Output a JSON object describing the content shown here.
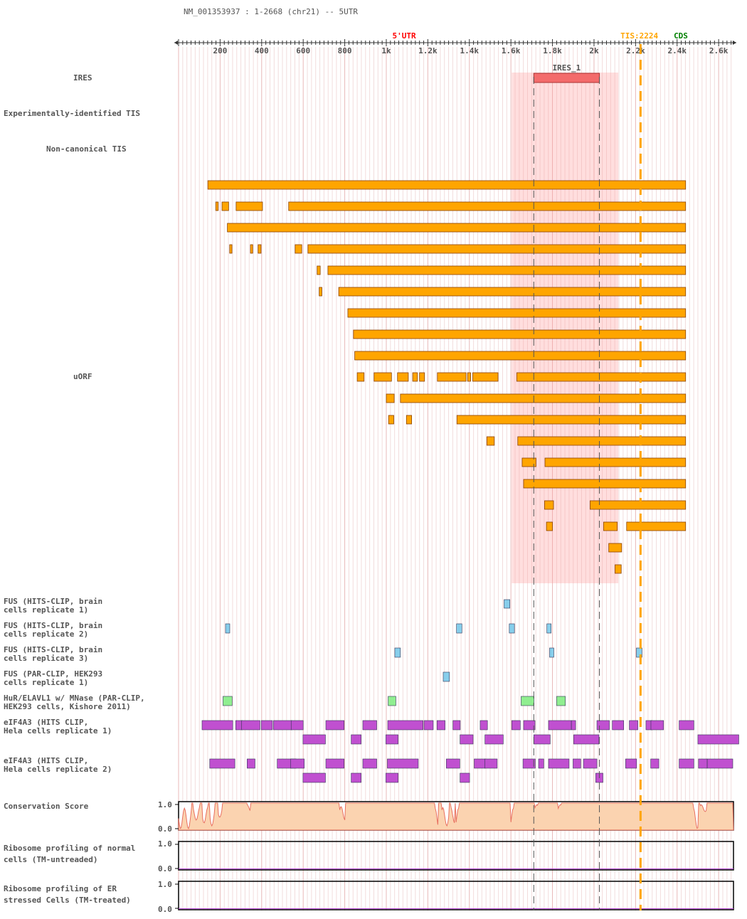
{
  "title": "NM_001353937 : 1-2668 (chr21) -- 5UTR",
  "axis": {
    "max": 2668,
    "tick_labels": [
      "200",
      "400",
      "600",
      "800",
      "1k",
      "1.2k",
      "1.4k",
      "1.6k",
      "1.8k",
      "2k",
      "2.2k",
      "2.4k",
      "2.6k"
    ],
    "tick_values": [
      200,
      400,
      600,
      800,
      1000,
      1200,
      1400,
      1600,
      1800,
      2000,
      2200,
      2400,
      2600
    ]
  },
  "region_labels": {
    "utr": "5'UTR",
    "tis": "TIS:2224",
    "cds": "CDS"
  },
  "tis_position": 2224,
  "ires": {
    "name": "IRES_1",
    "start": 1710,
    "end": 2026,
    "shade_start": 1604,
    "shade_end": 2117
  },
  "colors": {
    "ires": "#f36b6b",
    "uorf": "#ffa500",
    "fus": "#87ceeb",
    "hur": "#90ee90",
    "eif": "#c050d0",
    "cons": "#fbd3b0",
    "tis": "#ffa500",
    "utr": "#ff0000",
    "cds": "#008000"
  },
  "track_labels": {
    "ires": "IRES",
    "exp_tis": "Experimentally-identified TIS",
    "noncanonical": "Non-canonical TIS",
    "uorf": "uORF",
    "fus1": "FUS (HITS-CLIP, brain\ncells replicate 1)",
    "fus2": "FUS (HITS-CLIP, brain\ncells replicate 2)",
    "fus3": "FUS (HITS-CLIP, brain\ncells replicate 3)",
    "fus4": "FUS (PAR-CLIP, HEK293\ncells replicate 1)",
    "hur": "HuR/ELAVL1 w/ MNase (PAR-CLIP,\nHEK293 cells, Kishore 2011)",
    "eif1": "eIF4A3 (HITS CLIP,\nHela cells replicate 1)",
    "eif2": "eIF4A3 (HITS CLIP,\nHela cells replicate 2)",
    "cons": "Conservation Score",
    "ribo1": "Ribosome profiling of normal\ncells (TM-untreaded)",
    "ribo2": "Ribosome profiling of ER\nstressed Cells (TM-treated)"
  },
  "y_labels": {
    "top": "1.0",
    "bottom": "0.0"
  },
  "uorfs": [
    [
      [
        141,
        2441
      ]
    ],
    [
      [
        179,
        191
      ],
      [
        209,
        241
      ],
      [
        277,
        404
      ],
      [
        530,
        2441
      ]
    ],
    [
      [
        235,
        2441
      ]
    ],
    [
      [
        246,
        257
      ],
      [
        346,
        357
      ],
      [
        383,
        397
      ],
      [
        561,
        593
      ],
      [
        623,
        2441
      ]
    ],
    [
      [
        667,
        682
      ],
      [
        719,
        2441
      ]
    ],
    [
      [
        677,
        690
      ],
      [
        771,
        2441
      ]
    ],
    [
      [
        815,
        2441
      ]
    ],
    [
      [
        842,
        2441
      ]
    ],
    [
      [
        848,
        2441
      ]
    ],
    [
      [
        860,
        893
      ],
      [
        941,
        1025
      ],
      [
        1054,
        1106
      ],
      [
        1127,
        1150
      ],
      [
        1160,
        1184
      ],
      [
        1246,
        1384
      ],
      [
        1391,
        1406
      ],
      [
        1416,
        1538
      ],
      [
        1628,
        2441
      ]
    ],
    [
      [
        1000,
        1038
      ],
      [
        1068,
        2441
      ]
    ],
    [
      [
        1011,
        1036
      ],
      [
        1097,
        1122
      ],
      [
        1340,
        2441
      ]
    ],
    [
      [
        1484,
        1520
      ],
      [
        1633,
        2441
      ]
    ],
    [
      [
        1654,
        1721
      ],
      [
        1764,
        2441
      ]
    ],
    [
      [
        1661,
        2441
      ]
    ],
    [
      [
        1762,
        1805
      ],
      [
        1981,
        2441
      ]
    ],
    [
      [
        1771,
        1800
      ],
      [
        2046,
        2112
      ],
      [
        2157,
        2441
      ]
    ],
    [
      [
        2071,
        2133
      ]
    ],
    [
      [
        2101,
        2131
      ]
    ]
  ],
  "fus1": [
    [
      1567,
      1595
    ]
  ],
  "fus2": [
    [
      226,
      242
    ],
    [
      1338,
      1364
    ],
    [
      1592,
      1617
    ],
    [
      1773,
      1787
    ]
  ],
  "fus3": [
    [
      1041,
      1068
    ],
    [
      1786,
      1805
    ],
    [
      2204,
      2231
    ]
  ],
  "fus4": [
    [
      1274,
      1304
    ]
  ],
  "hur": [
    [
      214,
      258
    ],
    [
      1009,
      1046
    ],
    [
      1649,
      1711
    ],
    [
      1820,
      1862
    ]
  ],
  "eif1": [
    [
      [
        113,
        261
      ],
      [
        275,
        307
      ],
      [
        303,
        392
      ],
      [
        398,
        452
      ],
      [
        457,
        545
      ],
      [
        542,
        600
      ],
      [
        709,
        797
      ],
      [
        887,
        954
      ],
      [
        1007,
        1177
      ],
      [
        1182,
        1226
      ],
      [
        1244,
        1283
      ],
      [
        1321,
        1356
      ],
      [
        1452,
        1487
      ],
      [
        1604,
        1645
      ],
      [
        1661,
        1716
      ],
      [
        1781,
        1891
      ],
      [
        1891,
        1895
      ],
      [
        2014,
        2074
      ],
      [
        2088,
        2143
      ],
      [
        2170,
        2211
      ],
      [
        2250,
        2279
      ],
      [
        2274,
        2335
      ],
      [
        2410,
        2481
      ]
    ],
    [
      [
        599,
        707
      ],
      [
        831,
        879
      ],
      [
        998,
        1057
      ],
      [
        1355,
        1418
      ],
      [
        1475,
        1563
      ],
      [
        1710,
        1789
      ],
      [
        1902,
        2024
      ],
      [
        2500,
        2697
      ]
    ]
  ],
  "eif2": [
    [
      [
        150,
        271
      ],
      [
        330,
        368
      ],
      [
        475,
        566
      ],
      [
        539,
        605
      ],
      [
        709,
        797
      ],
      [
        887,
        954
      ],
      [
        1005,
        1154
      ],
      [
        1289,
        1354
      ],
      [
        1423,
        1476
      ],
      [
        1474,
        1534
      ],
      [
        1658,
        1717
      ],
      [
        1733,
        1758
      ],
      [
        1781,
        1880
      ],
      [
        1899,
        1936
      ],
      [
        1949,
        2014
      ],
      [
        2152,
        2205
      ],
      [
        2273,
        2312
      ],
      [
        2410,
        2481
      ],
      [
        2503,
        2545
      ],
      [
        2545,
        2668
      ]
    ],
    [
      [
        599,
        707
      ],
      [
        831,
        879
      ],
      [
        998,
        1057
      ],
      [
        1355,
        1401
      ],
      [
        2008,
        2043
      ]
    ]
  ]
}
